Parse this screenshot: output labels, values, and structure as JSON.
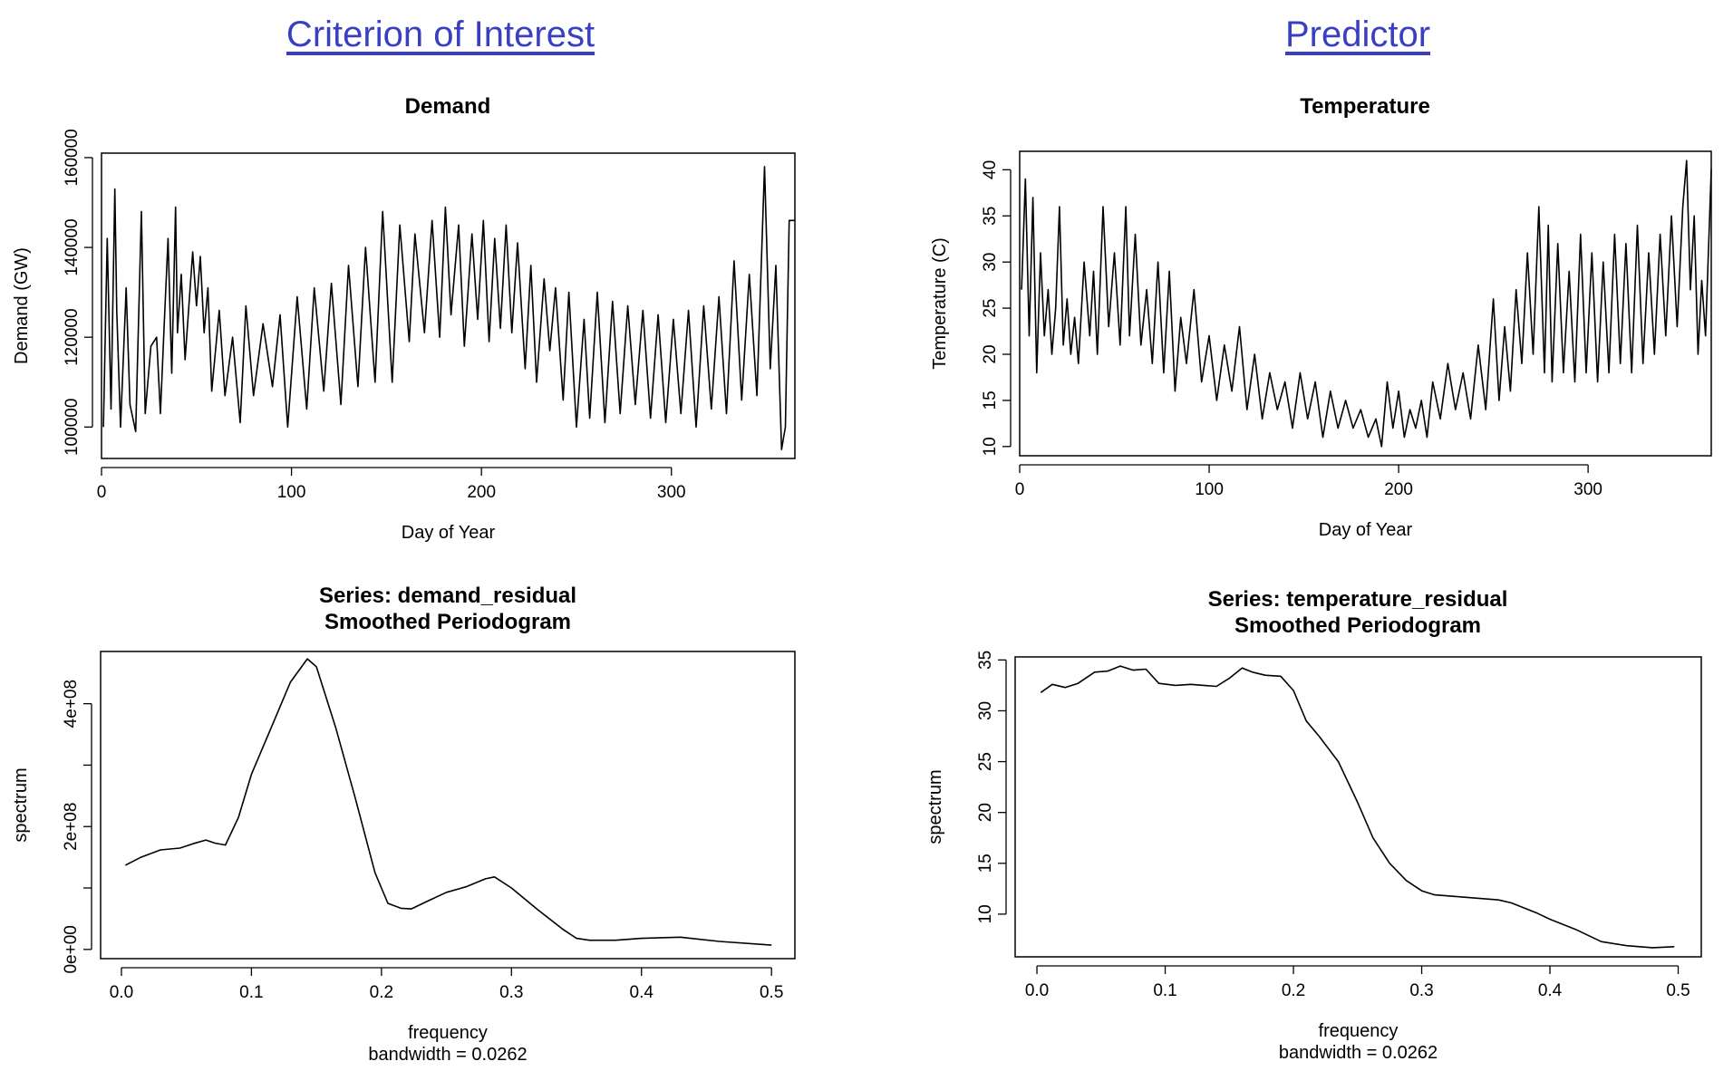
{
  "headings": {
    "left": "Criterion of Interest",
    "right": "Predictor"
  },
  "line_color": "#000000",
  "chart_data": [
    {
      "type": "line",
      "title": "Demand",
      "xlabel": "Day of Year",
      "ylabel": "Demand (GW)",
      "xlim": [
        0,
        365
      ],
      "ylim": [
        93000,
        161000
      ],
      "xticks": [
        0,
        100,
        200,
        300
      ],
      "xtick_labels": [
        "0",
        "100",
        "200",
        "300"
      ],
      "yticks": [
        100000,
        120000,
        140000,
        160000
      ],
      "ytick_labels": [
        "100000",
        "120000",
        "140000",
        "160000"
      ],
      "grid": false,
      "series": [
        {
          "x": [
            1,
            3,
            5,
            7,
            8,
            10,
            13,
            15,
            18,
            21,
            23,
            26,
            29,
            31,
            33,
            35,
            37,
            39,
            40,
            42,
            44,
            46,
            48,
            50,
            52,
            54,
            56,
            58,
            62,
            65,
            69,
            73,
            76,
            80,
            85,
            90,
            94,
            98,
            103,
            108,
            112,
            117,
            121,
            126,
            130,
            135,
            139,
            144,
            148,
            153,
            157,
            162,
            165,
            170,
            174,
            178,
            181,
            184,
            188,
            191,
            195,
            198,
            201,
            204,
            207,
            210,
            213,
            216,
            219,
            223,
            226,
            229,
            233,
            236,
            239,
            243,
            246,
            250,
            254,
            257,
            261,
            265,
            269,
            273,
            277,
            281,
            285,
            289,
            293,
            297,
            301,
            305,
            309,
            313,
            317,
            321,
            325,
            329,
            333,
            337,
            341,
            345,
            349,
            352,
            355,
            358,
            360,
            362,
            365
          ],
          "y": [
            100000,
            142000,
            104000,
            153000,
            126000,
            100000,
            131000,
            105000,
            99000,
            148000,
            103000,
            118000,
            120000,
            103000,
            123000,
            142000,
            112000,
            149000,
            121000,
            134000,
            115000,
            127000,
            139000,
            127000,
            138000,
            121000,
            131000,
            108000,
            126000,
            107000,
            120000,
            101000,
            127000,
            107000,
            123000,
            109000,
            125000,
            100000,
            129000,
            104000,
            131000,
            108000,
            132000,
            105000,
            136000,
            109000,
            140000,
            110000,
            148000,
            110000,
            145000,
            119000,
            143000,
            121000,
            146000,
            120000,
            149000,
            125000,
            145000,
            118000,
            143000,
            124000,
            146000,
            119000,
            142000,
            122000,
            145000,
            121000,
            141000,
            113000,
            136000,
            110000,
            133000,
            117000,
            131000,
            106000,
            130000,
            100000,
            124000,
            102000,
            130000,
            101000,
            128000,
            103000,
            127000,
            105000,
            126000,
            102000,
            125000,
            101000,
            124000,
            103000,
            126000,
            100000,
            127000,
            104000,
            129000,
            103000,
            137000,
            106000,
            134000,
            107000,
            158000,
            113000,
            136000,
            95000,
            100000,
            146000,
            146000
          ]
        }
      ]
    },
    {
      "type": "line",
      "title": "Temperature",
      "xlabel": "Day of Year",
      "ylabel": "Temperature (C)",
      "xlim": [
        0,
        365
      ],
      "ylim": [
        9,
        42
      ],
      "xticks": [
        0,
        100,
        200,
        300
      ],
      "xtick_labels": [
        "0",
        "100",
        "200",
        "300"
      ],
      "yticks": [
        10,
        15,
        20,
        25,
        30,
        35,
        40
      ],
      "ytick_labels": [
        "10",
        "15",
        "20",
        "25",
        "30",
        "35",
        "40"
      ],
      "grid": false,
      "series": [
        {
          "x": [
            1,
            3,
            5,
            7,
            9,
            11,
            13,
            15,
            17,
            19,
            21,
            23,
            25,
            27,
            29,
            31,
            34,
            37,
            39,
            41,
            44,
            47,
            50,
            53,
            56,
            58,
            61,
            64,
            67,
            70,
            73,
            76,
            79,
            82,
            85,
            88,
            92,
            96,
            100,
            104,
            108,
            112,
            116,
            120,
            124,
            128,
            132,
            136,
            140,
            144,
            148,
            152,
            156,
            160,
            164,
            168,
            172,
            176,
            180,
            184,
            188,
            191,
            194,
            197,
            200,
            203,
            206,
            209,
            212,
            215,
            218,
            222,
            226,
            230,
            234,
            238,
            242,
            246,
            250,
            253,
            256,
            259,
            262,
            265,
            268,
            271,
            274,
            277,
            279,
            281,
            284,
            287,
            290,
            293,
            296,
            299,
            302,
            305,
            308,
            311,
            314,
            317,
            320,
            323,
            326,
            329,
            332,
            335,
            338,
            341,
            344,
            347,
            350,
            352,
            354,
            356,
            358,
            360,
            362,
            365
          ],
          "y": [
            27,
            39,
            22,
            37,
            18,
            31,
            22,
            27,
            20,
            25,
            36,
            21,
            26,
            20,
            24,
            19,
            30,
            22,
            29,
            20,
            36,
            23,
            31,
            21,
            36,
            22,
            33,
            21,
            27,
            19,
            30,
            18,
            29,
            16,
            24,
            19,
            27,
            17,
            22,
            15,
            21,
            16,
            23,
            14,
            20,
            13,
            18,
            14,
            17,
            12,
            18,
            13,
            17,
            11,
            16,
            12,
            15,
            12,
            14,
            11,
            13,
            10,
            17,
            12,
            16,
            11,
            14,
            12,
            15,
            11,
            17,
            13,
            19,
            14,
            18,
            13,
            21,
            14,
            26,
            15,
            23,
            16,
            27,
            19,
            31,
            20,
            36,
            18,
            34,
            17,
            32,
            18,
            29,
            17,
            33,
            18,
            31,
            17,
            30,
            18,
            33,
            19,
            32,
            18,
            34,
            19,
            31,
            20,
            33,
            22,
            35,
            23,
            36,
            41,
            27,
            35,
            20,
            28,
            22,
            40
          ]
        }
      ]
    },
    {
      "type": "line",
      "title": "Series: demand_residual\nSmoothed Periodogram",
      "xlabel": "frequency\nbandwidth = 0.0262",
      "ylabel": "spectrum",
      "xlim": [
        -0.016,
        0.518
      ],
      "ylim": [
        -15000000,
        485000000
      ],
      "xticks": [
        0.0,
        0.1,
        0.2,
        0.3,
        0.4,
        0.5
      ],
      "xtick_labels": [
        "0.0",
        "0.1",
        "0.2",
        "0.3",
        "0.4",
        "0.5"
      ],
      "yticks": [
        0,
        100000000,
        200000000,
        300000000,
        400000000
      ],
      "ytick_labels": [
        "0e+00",
        "",
        "2e+08",
        "",
        "4e+08"
      ],
      "grid": false,
      "series": [
        {
          "x": [
            0.003,
            0.015,
            0.03,
            0.045,
            0.055,
            0.065,
            0.072,
            0.08,
            0.09,
            0.1,
            0.115,
            0.13,
            0.143,
            0.15,
            0.165,
            0.18,
            0.195,
            0.205,
            0.215,
            0.223,
            0.235,
            0.25,
            0.265,
            0.28,
            0.287,
            0.3,
            0.32,
            0.34,
            0.35,
            0.36,
            0.38,
            0.4,
            0.43,
            0.46,
            0.5
          ],
          "y": [
            137000000,
            150000000,
            162000000,
            165000000,
            172000000,
            178000000,
            173000000,
            170000000,
            215000000,
            285000000,
            360000000,
            435000000,
            473000000,
            460000000,
            360000000,
            245000000,
            125000000,
            75000000,
            67000000,
            66000000,
            78000000,
            93000000,
            102000000,
            115000000,
            118000000,
            100000000,
            65000000,
            32000000,
            18000000,
            15000000,
            15000000,
            18000000,
            20000000,
            13000000,
            7000000
          ]
        }
      ]
    },
    {
      "type": "line",
      "title": "Series: temperature_residual\nSmoothed Periodogram",
      "xlabel": "frequency\nbandwidth = 0.0262",
      "ylabel": "spectrum",
      "xlim": [
        -0.017,
        0.518
      ],
      "ylim": [
        5.8,
        35.3
      ],
      "xticks": [
        0.0,
        0.1,
        0.2,
        0.3,
        0.4,
        0.5
      ],
      "xtick_labels": [
        "0.0",
        "0.1",
        "0.2",
        "0.3",
        "0.4",
        "0.5"
      ],
      "yticks": [
        10,
        15,
        20,
        25,
        30,
        35
      ],
      "ytick_labels": [
        "10",
        "15",
        "20",
        "25",
        "30",
        "35"
      ],
      "grid": false,
      "series": [
        {
          "x": [
            0.003,
            0.012,
            0.022,
            0.032,
            0.045,
            0.055,
            0.065,
            0.075,
            0.085,
            0.095,
            0.108,
            0.12,
            0.13,
            0.14,
            0.15,
            0.16,
            0.168,
            0.178,
            0.19,
            0.2,
            0.21,
            0.22,
            0.235,
            0.25,
            0.262,
            0.275,
            0.288,
            0.3,
            0.31,
            0.32,
            0.34,
            0.36,
            0.37,
            0.38,
            0.39,
            0.4,
            0.42,
            0.44,
            0.46,
            0.48,
            0.497
          ],
          "y": [
            31.8,
            32.6,
            32.3,
            32.7,
            33.8,
            33.9,
            34.4,
            34.0,
            34.1,
            32.7,
            32.5,
            32.6,
            32.5,
            32.4,
            33.2,
            34.2,
            33.8,
            33.5,
            33.4,
            32.0,
            29.0,
            27.5,
            25.0,
            21.0,
            17.5,
            15.0,
            13.3,
            12.3,
            11.9,
            11.8,
            11.6,
            11.4,
            11.1,
            10.6,
            10.1,
            9.5,
            8.5,
            7.3,
            6.9,
            6.7,
            6.8
          ]
        }
      ]
    }
  ]
}
